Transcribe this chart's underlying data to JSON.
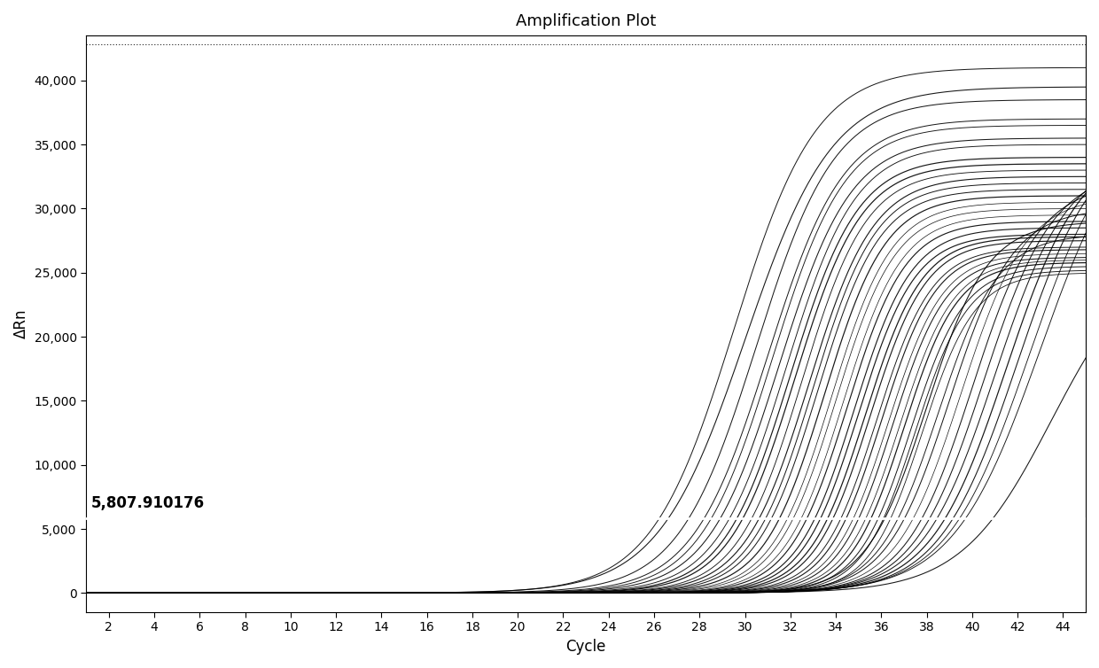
{
  "title": "Amplification Plot",
  "xlabel": "Cycle",
  "ylabel": "ΔRn",
  "xlim": [
    1,
    45
  ],
  "ylim": [
    -1500,
    43500
  ],
  "xticks": [
    2,
    4,
    6,
    8,
    10,
    12,
    14,
    16,
    18,
    20,
    22,
    24,
    26,
    28,
    30,
    32,
    34,
    36,
    38,
    40,
    42,
    44
  ],
  "yticks": [
    0,
    5000,
    10000,
    15000,
    20000,
    25000,
    30000,
    35000,
    40000
  ],
  "threshold_y": 5807.910176,
  "threshold_label": "5,807.910176",
  "background_color": "#ffffff",
  "curve_color": "#000000",
  "threshold_line_color": "#ffffff",
  "dot_line_y": 42800,
  "title_fontsize": 13,
  "axis_label_fontsize": 12,
  "tick_fontsize": 10,
  "annotation_fontsize": 12,
  "curves": [
    {
      "ct": 29.5,
      "plateau": 41000,
      "slope": 0.55
    },
    {
      "ct": 30.0,
      "plateau": 39500,
      "slope": 0.52
    },
    {
      "ct": 30.5,
      "plateau": 38500,
      "slope": 0.58
    },
    {
      "ct": 31.0,
      "plateau": 37000,
      "slope": 0.6
    },
    {
      "ct": 31.2,
      "plateau": 36500,
      "slope": 0.62
    },
    {
      "ct": 31.5,
      "plateau": 35500,
      "slope": 0.63
    },
    {
      "ct": 31.8,
      "plateau": 35000,
      "slope": 0.65
    },
    {
      "ct": 32.0,
      "plateau": 34000,
      "slope": 0.67
    },
    {
      "ct": 32.2,
      "plateau": 33500,
      "slope": 0.68
    },
    {
      "ct": 32.5,
      "plateau": 33000,
      "slope": 0.7
    },
    {
      "ct": 32.8,
      "plateau": 32500,
      "slope": 0.7
    },
    {
      "ct": 33.0,
      "plateau": 32000,
      "slope": 0.72
    },
    {
      "ct": 33.2,
      "plateau": 31500,
      "slope": 0.73
    },
    {
      "ct": 33.5,
      "plateau": 31000,
      "slope": 0.74
    },
    {
      "ct": 33.8,
      "plateau": 30500,
      "slope": 0.75
    },
    {
      "ct": 34.0,
      "plateau": 30000,
      "slope": 0.76
    },
    {
      "ct": 34.3,
      "plateau": 29500,
      "slope": 0.77
    },
    {
      "ct": 34.5,
      "plateau": 29000,
      "slope": 0.78
    },
    {
      "ct": 34.8,
      "plateau": 28500,
      "slope": 0.79
    },
    {
      "ct": 35.0,
      "plateau": 28000,
      "slope": 0.8
    },
    {
      "ct": 35.3,
      "plateau": 27800,
      "slope": 0.8
    },
    {
      "ct": 35.5,
      "plateau": 27500,
      "slope": 0.81
    },
    {
      "ct": 35.8,
      "plateau": 27000,
      "slope": 0.82
    },
    {
      "ct": 36.0,
      "plateau": 26800,
      "slope": 0.83
    },
    {
      "ct": 36.3,
      "plateau": 26500,
      "slope": 0.83
    },
    {
      "ct": 36.5,
      "plateau": 26200,
      "slope": 0.84
    },
    {
      "ct": 36.8,
      "plateau": 26000,
      "slope": 0.84
    },
    {
      "ct": 37.0,
      "plateau": 25800,
      "slope": 0.85
    },
    {
      "ct": 37.3,
      "plateau": 25500,
      "slope": 0.85
    },
    {
      "ct": 37.5,
      "plateau": 25200,
      "slope": 0.86
    },
    {
      "ct": 37.8,
      "plateau": 25000,
      "slope": 0.86
    },
    {
      "ct": 38.0,
      "plateau": 29000,
      "slope": 0.75
    },
    {
      "ct": 38.5,
      "plateau": 28000,
      "slope": 0.76
    },
    {
      "ct": 39.0,
      "plateau": 30000,
      "slope": 0.72
    },
    {
      "ct": 39.5,
      "plateau": 31000,
      "slope": 0.7
    },
    {
      "ct": 40.0,
      "plateau": 32000,
      "slope": 0.68
    },
    {
      "ct": 40.5,
      "plateau": 33000,
      "slope": 0.65
    },
    {
      "ct": 41.0,
      "plateau": 34000,
      "slope": 0.62
    },
    {
      "ct": 41.5,
      "plateau": 35000,
      "slope": 0.6
    },
    {
      "ct": 42.0,
      "plateau": 36000,
      "slope": 0.58
    },
    {
      "ct": 42.5,
      "plateau": 37000,
      "slope": 0.55
    },
    {
      "ct": 43.0,
      "plateau": 38000,
      "slope": 0.52
    },
    {
      "ct": 43.5,
      "plateau": 27000,
      "slope": 0.5
    }
  ]
}
